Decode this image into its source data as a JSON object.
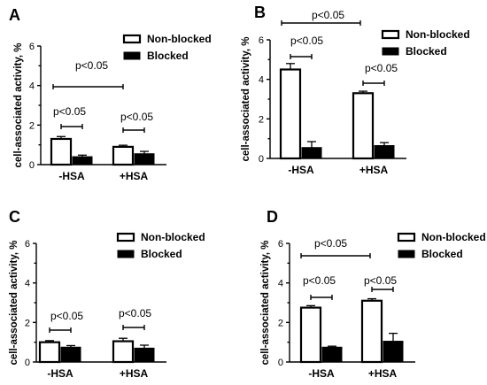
{
  "chart_data": [
    {
      "panel": "A",
      "type": "bar",
      "ylabel": "cell-associated activity, %",
      "ylim": [
        0,
        6
      ],
      "yticks": [
        "0",
        "2",
        "4",
        "6"
      ],
      "categories": [
        "-HSA",
        "+HSA"
      ],
      "series": [
        {
          "name": "Non-blocked",
          "values": [
            1.3,
            0.9
          ],
          "errors": [
            0.12,
            0.08
          ]
        },
        {
          "name": "Blocked",
          "values": [
            0.4,
            0.55
          ],
          "errors": [
            0.08,
            0.12
          ]
        }
      ],
      "legend": [
        "Non-blocked",
        "Blocked"
      ],
      "annotations": [
        "p<0.05",
        "p<0.05",
        "p<0.05"
      ]
    },
    {
      "panel": "B",
      "type": "bar",
      "ylabel": "cell-associated activity, %",
      "ylim": [
        0,
        6
      ],
      "yticks": [
        "0",
        "2",
        "4",
        "6"
      ],
      "categories": [
        "-HSA",
        "+HSA"
      ],
      "series": [
        {
          "name": "Non-blocked",
          "values": [
            4.5,
            3.3
          ],
          "errors": [
            0.3,
            0.1
          ]
        },
        {
          "name": "Blocked",
          "values": [
            0.55,
            0.65
          ],
          "errors": [
            0.3,
            0.15
          ]
        }
      ],
      "legend": [
        "Non-blocked",
        "Blocked"
      ],
      "annotations": [
        "p<0.05",
        "p<0.05",
        "p<0.05"
      ]
    },
    {
      "panel": "C",
      "type": "bar",
      "ylabel": "cell-associated activity, %",
      "ylim": [
        0,
        6
      ],
      "yticks": [
        "0",
        "2",
        "4",
        "6"
      ],
      "categories": [
        "-HSA",
        "+HSA"
      ],
      "series": [
        {
          "name": "Non-blocked",
          "values": [
            1.0,
            1.05
          ],
          "errors": [
            0.08,
            0.15
          ]
        },
        {
          "name": "Blocked",
          "values": [
            0.75,
            0.7
          ],
          "errors": [
            0.08,
            0.15
          ]
        }
      ],
      "legend": [
        "Non-blocked",
        "Blocked"
      ],
      "annotations": [
        "p<0.05",
        "p<0.05"
      ]
    },
    {
      "panel": "D",
      "type": "bar",
      "ylabel": "cell-associated activity, %",
      "ylim": [
        0,
        6
      ],
      "yticks": [
        "0",
        "2",
        "4",
        "6"
      ],
      "categories": [
        "-HSA",
        "+HSA"
      ],
      "series": [
        {
          "name": "Non-blocked",
          "values": [
            2.75,
            3.1
          ],
          "errors": [
            0.1,
            0.1
          ]
        },
        {
          "name": "Blocked",
          "values": [
            0.75,
            1.05
          ],
          "errors": [
            0.05,
            0.4
          ]
        }
      ],
      "legend": [
        "Non-blocked",
        "Blocked"
      ],
      "annotations": [
        "p<0.05",
        "p<0.05",
        "p<0.05"
      ]
    }
  ]
}
